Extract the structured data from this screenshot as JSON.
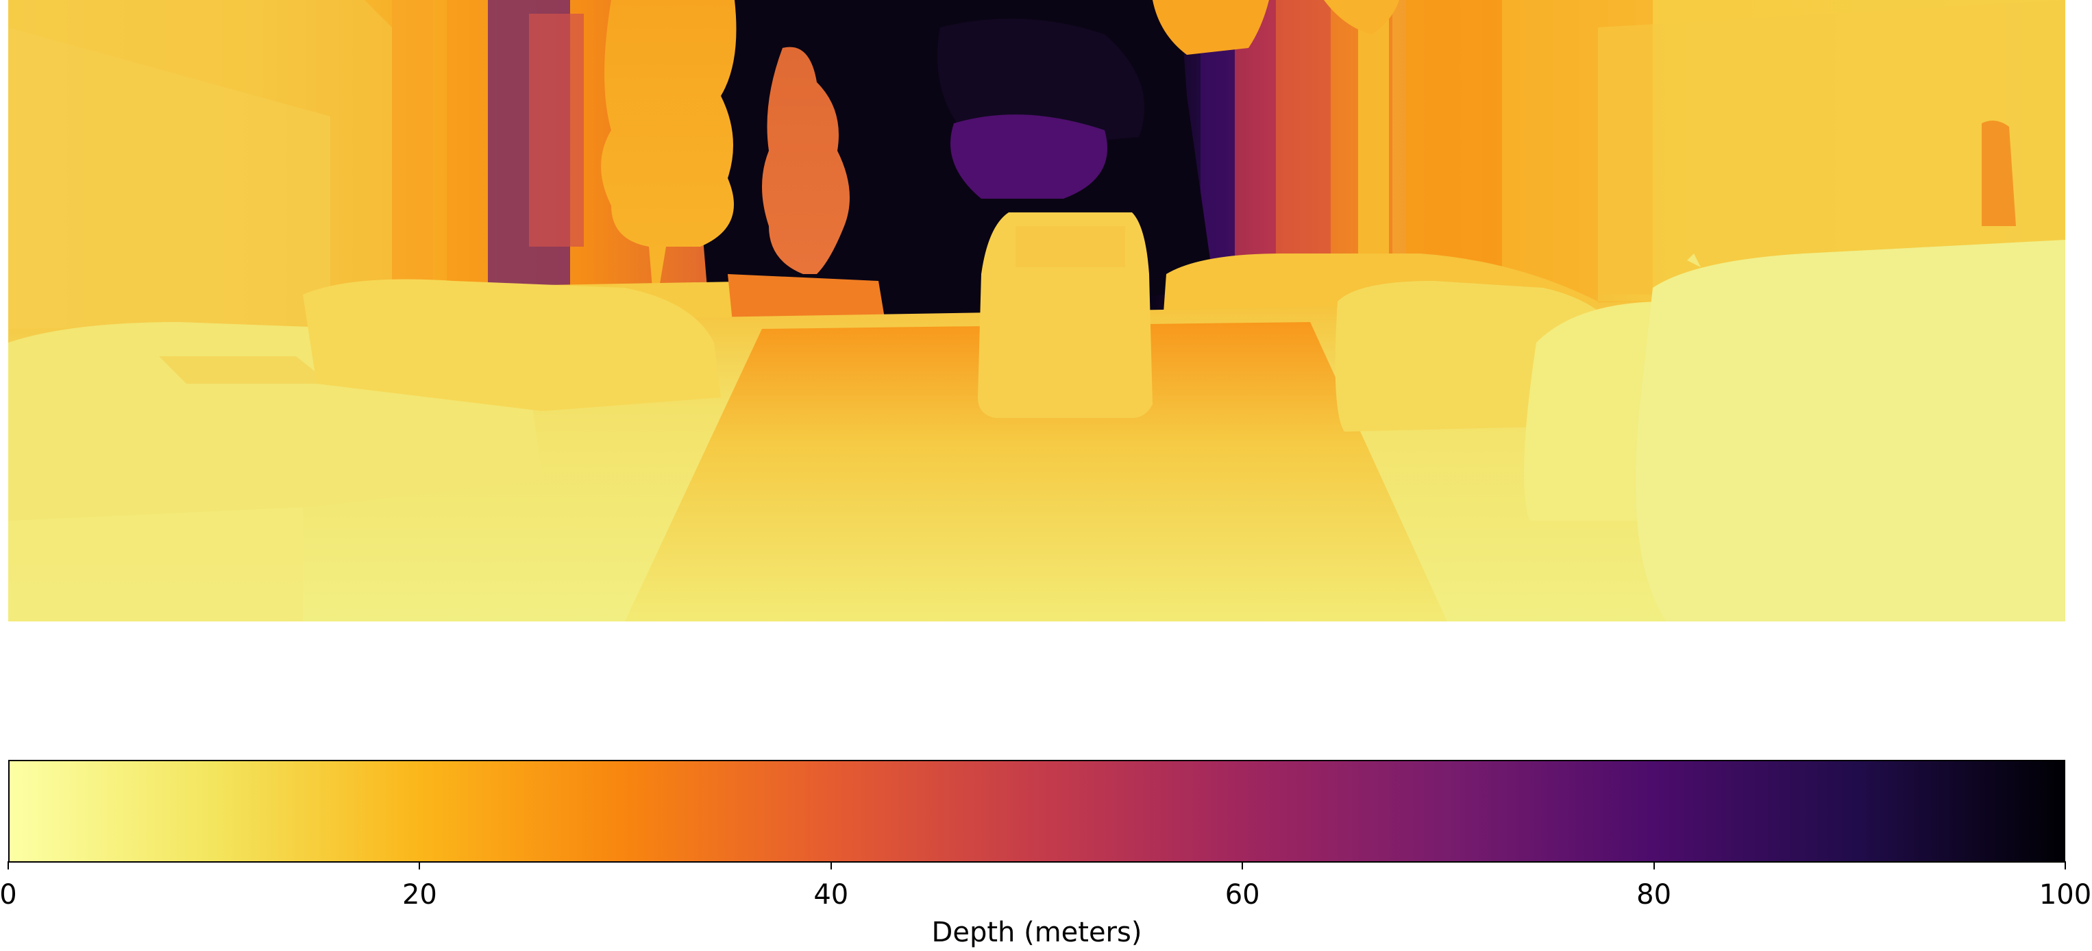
{
  "image": {
    "content": "depth map",
    "colormap": "inferno_r",
    "colors": {
      "near": "#fcffa4",
      "stops": [
        "#fcffa4",
        "#f3e55d",
        "#fbb61a",
        "#f8850f",
        "#e55c30",
        "#c53c4a",
        "#a0265e",
        "#781c6d",
        "#4c0c6b",
        "#200c4a",
        "#000004"
      ]
    }
  },
  "colorbar": {
    "label": "Depth (meters)",
    "min": 0,
    "max": 100,
    "ticks": [
      {
        "value": 0,
        "label": "0"
      },
      {
        "value": 20,
        "label": "20"
      },
      {
        "value": 40,
        "label": "40"
      },
      {
        "value": 60,
        "label": "60"
      },
      {
        "value": 80,
        "label": "80"
      },
      {
        "value": 100,
        "label": "100"
      }
    ]
  }
}
